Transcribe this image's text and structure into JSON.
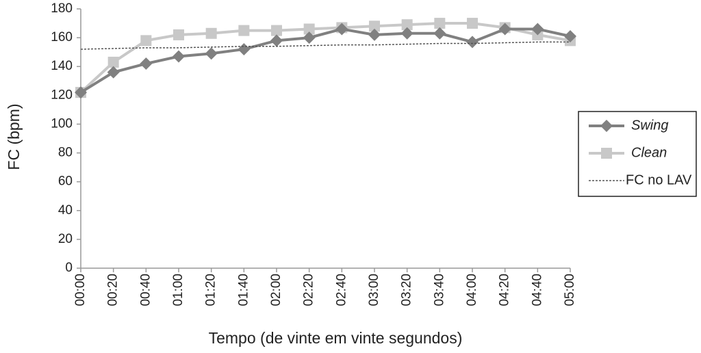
{
  "chart_data": {
    "type": "line",
    "y_label": "FC (bpm)",
    "x_label": "Tempo (de vinte em vinte segundos)",
    "categories": [
      "00:00",
      "00:20",
      "00:40",
      "01:00",
      "01:20",
      "01:40",
      "02:00",
      "02:20",
      "02:40",
      "03:00",
      "03:20",
      "03:40",
      "04:00",
      "04:20",
      "04:40",
      "05:00"
    ],
    "series": [
      {
        "name": "Swing",
        "color": "#808080",
        "marker": "diamond",
        "values": [
          122,
          136,
          142,
          147,
          149,
          152,
          158,
          160,
          166,
          162,
          163,
          163,
          157,
          166,
          166,
          161
        ]
      },
      {
        "name": "Clean",
        "color": "#c8c8c8",
        "marker": "square",
        "values": [
          122,
          143,
          158,
          162,
          163,
          165,
          165,
          166,
          167,
          168,
          169,
          170,
          170,
          167,
          162,
          158
        ]
      },
      {
        "name": "FC no LAV",
        "color": "#555555",
        "marker": "none",
        "dashed": true,
        "values": [
          152,
          152.5,
          153,
          153,
          153.5,
          154,
          154,
          154.5,
          155,
          155,
          155.5,
          156,
          156,
          156.5,
          157,
          157
        ]
      }
    ],
    "ylim": [
      0,
      180
    ],
    "yticks": [
      0,
      20,
      40,
      60,
      80,
      100,
      120,
      140,
      160,
      180
    ],
    "grid": false,
    "legend": "right"
  }
}
